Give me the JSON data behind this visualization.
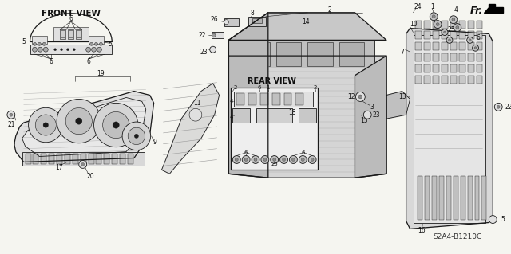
{
  "background_color": "#f5f5f0",
  "line_color": "#1a1a1a",
  "text_color": "#111111",
  "gray_fill": "#c8c8c8",
  "light_gray": "#e0e0e0",
  "hatch_gray": "#b0b0b0",
  "fig_width": 6.4,
  "fig_height": 3.19,
  "dpi": 100,
  "front_view_title": "FRONT VIEW",
  "rear_view_title": "REAR VIEW",
  "fr_label": "Fr.",
  "diagram_code": "S2A4-B1210C"
}
